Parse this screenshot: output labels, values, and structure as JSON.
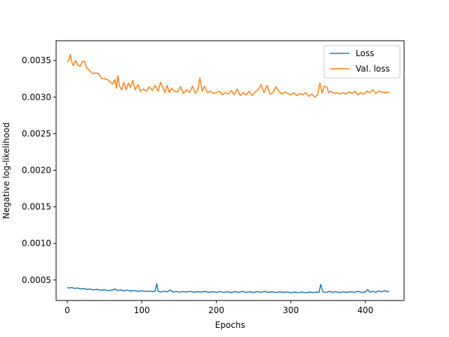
{
  "chart_data": {
    "type": "line",
    "title": "",
    "xlabel": "Epochs",
    "ylabel": "Negative log-likelihood",
    "xlim": [
      -15,
      452
    ],
    "ylim": [
      0.00022,
      0.00377
    ],
    "xticks": [
      0,
      100,
      200,
      300,
      400
    ],
    "xtick_labels": [
      "0",
      "100",
      "200",
      "300",
      "400"
    ],
    "yticks": [
      0.0005,
      0.001,
      0.0015,
      0.002,
      0.0025,
      0.003,
      0.0035
    ],
    "ytick_labels": [
      "0.0005",
      "0.0010",
      "0.0015",
      "0.0020",
      "0.0025",
      "0.0030",
      "0.0035"
    ],
    "grid": false,
    "legend_position": "top-right",
    "series": [
      {
        "name": "Loss",
        "color": "#1f77b4",
        "points": [
          [
            0,
            0.000395
          ],
          [
            3,
            0.00039
          ],
          [
            6,
            0.000398
          ],
          [
            10,
            0.000385
          ],
          [
            14,
            0.00039
          ],
          [
            18,
            0.000378
          ],
          [
            22,
            0.000383
          ],
          [
            26,
            0.000372
          ],
          [
            30,
            0.000376
          ],
          [
            35,
            0.000365
          ],
          [
            40,
            0.000372
          ],
          [
            45,
            0.00036
          ],
          [
            50,
            0.000366
          ],
          [
            55,
            0.000356
          ],
          [
            60,
            0.000362
          ],
          [
            64,
            0.000378
          ],
          [
            68,
            0.000356
          ],
          [
            72,
            0.000365
          ],
          [
            76,
            0.00035
          ],
          [
            80,
            0.000362
          ],
          [
            85,
            0.000348
          ],
          [
            90,
            0.000356
          ],
          [
            95,
            0.000345
          ],
          [
            100,
            0.000352
          ],
          [
            105,
            0.000343
          ],
          [
            110,
            0.00035
          ],
          [
            115,
            0.00034
          ],
          [
            118,
            0.000348
          ],
          [
            120,
            0.00045
          ],
          [
            122,
            0.000345
          ],
          [
            126,
            0.000336
          ],
          [
            130,
            0.000348
          ],
          [
            134,
            0.000338
          ],
          [
            138,
            0.000365
          ],
          [
            142,
            0.000335
          ],
          [
            146,
            0.000345
          ],
          [
            150,
            0.000333
          ],
          [
            155,
            0.000342
          ],
          [
            160,
            0.000336
          ],
          [
            165,
            0.000345
          ],
          [
            170,
            0.000332
          ],
          [
            175,
            0.000342
          ],
          [
            180,
            0.000335
          ],
          [
            185,
            0.000345
          ],
          [
            190,
            0.00033
          ],
          [
            195,
            0.00034
          ],
          [
            200,
            0.000333
          ],
          [
            205,
            0.000343
          ],
          [
            210,
            0.00033
          ],
          [
            215,
            0.00034
          ],
          [
            220,
            0.000328
          ],
          [
            225,
            0.000342
          ],
          [
            230,
            0.000331
          ],
          [
            235,
            0.000345
          ],
          [
            240,
            0.00033
          ],
          [
            245,
            0.00034
          ],
          [
            250,
            0.000328
          ],
          [
            255,
            0.000342
          ],
          [
            260,
            0.000332
          ],
          [
            265,
            0.000345
          ],
          [
            270,
            0.00033
          ],
          [
            275,
            0.00034
          ],
          [
            280,
            0.000328
          ],
          [
            285,
            0.000338
          ],
          [
            290,
            0.00033
          ],
          [
            295,
            0.000338
          ],
          [
            300,
            0.000326
          ],
          [
            305,
            0.000335
          ],
          [
            310,
            0.000328
          ],
          [
            315,
            0.000336
          ],
          [
            320,
            0.000325
          ],
          [
            325,
            0.000335
          ],
          [
            330,
            0.000328
          ],
          [
            335,
            0.000336
          ],
          [
            338,
            0.00033
          ],
          [
            340,
            0.00044
          ],
          [
            343,
            0.000338
          ],
          [
            347,
            0.00033
          ],
          [
            352,
            0.000345
          ],
          [
            356,
            0.00033
          ],
          [
            360,
            0.00034
          ],
          [
            365,
            0.000328
          ],
          [
            370,
            0.000338
          ],
          [
            375,
            0.00033
          ],
          [
            380,
            0.00034
          ],
          [
            385,
            0.000332
          ],
          [
            390,
            0.000345
          ],
          [
            395,
            0.00033
          ],
          [
            400,
            0.000338
          ],
          [
            403,
            0.00037
          ],
          [
            406,
            0.000335
          ],
          [
            410,
            0.000345
          ],
          [
            414,
            0.000332
          ],
          [
            418,
            0.00035
          ],
          [
            422,
            0.000338
          ],
          [
            426,
            0.000355
          ],
          [
            430,
            0.00034
          ],
          [
            432,
            0.000345
          ]
        ]
      },
      {
        "name": "Val. loss",
        "color": "#ff7f0e",
        "points": [
          [
            0,
            0.00348
          ],
          [
            2,
            0.0035
          ],
          [
            4,
            0.00358
          ],
          [
            6,
            0.00348
          ],
          [
            8,
            0.00343
          ],
          [
            11,
            0.0035
          ],
          [
            14,
            0.00344
          ],
          [
            17,
            0.00342
          ],
          [
            20,
            0.00348
          ],
          [
            23,
            0.00349
          ],
          [
            26,
            0.0034
          ],
          [
            30,
            0.00336
          ],
          [
            34,
            0.00332
          ],
          [
            38,
            0.00333
          ],
          [
            42,
            0.00332
          ],
          [
            46,
            0.00326
          ],
          [
            50,
            0.00325
          ],
          [
            54,
            0.00324
          ],
          [
            58,
            0.0032
          ],
          [
            61,
            0.00318
          ],
          [
            64,
            0.00324
          ],
          [
            66,
            0.00312
          ],
          [
            68,
            0.00329
          ],
          [
            70,
            0.00315
          ],
          [
            73,
            0.0031
          ],
          [
            76,
            0.0032
          ],
          [
            79,
            0.0031
          ],
          [
            82,
            0.00319
          ],
          [
            85,
            0.00313
          ],
          [
            88,
            0.00323
          ],
          [
            91,
            0.0031
          ],
          [
            95,
            0.00317
          ],
          [
            98,
            0.00308
          ],
          [
            102,
            0.00311
          ],
          [
            106,
            0.00308
          ],
          [
            110,
            0.00314
          ],
          [
            114,
            0.00309
          ],
          [
            118,
            0.00316
          ],
          [
            122,
            0.00308
          ],
          [
            125,
            0.0032
          ],
          [
            128,
            0.00314
          ],
          [
            131,
            0.00306
          ],
          [
            134,
            0.00316
          ],
          [
            137,
            0.00306
          ],
          [
            140,
            0.00312
          ],
          [
            144,
            0.00308
          ],
          [
            148,
            0.00307
          ],
          [
            152,
            0.00314
          ],
          [
            156,
            0.00305
          ],
          [
            160,
            0.0031
          ],
          [
            164,
            0.00306
          ],
          [
            168,
            0.00315
          ],
          [
            172,
            0.00305
          ],
          [
            175,
            0.0031
          ],
          [
            178,
            0.00326
          ],
          [
            181,
            0.00308
          ],
          [
            184,
            0.00315
          ],
          [
            188,
            0.00306
          ],
          [
            192,
            0.00308
          ],
          [
            196,
            0.00305
          ],
          [
            200,
            0.00306
          ],
          [
            204,
            0.00308
          ],
          [
            208,
            0.00303
          ],
          [
            212,
            0.00306
          ],
          [
            216,
            0.00304
          ],
          [
            220,
            0.00309
          ],
          [
            224,
            0.00303
          ],
          [
            228,
            0.00311
          ],
          [
            232,
            0.00302
          ],
          [
            236,
            0.00306
          ],
          [
            240,
            0.00303
          ],
          [
            244,
            0.00308
          ],
          [
            248,
            0.00302
          ],
          [
            252,
            0.00307
          ],
          [
            256,
            0.0031
          ],
          [
            260,
            0.00317
          ],
          [
            264,
            0.00306
          ],
          [
            268,
            0.00316
          ],
          [
            272,
            0.00304
          ],
          [
            276,
            0.00306
          ],
          [
            280,
            0.00314
          ],
          [
            284,
            0.00308
          ],
          [
            288,
            0.00304
          ],
          [
            292,
            0.00307
          ],
          [
            296,
            0.00305
          ],
          [
            300,
            0.00303
          ],
          [
            304,
            0.00306
          ],
          [
            308,
            0.00302
          ],
          [
            312,
            0.00305
          ],
          [
            316,
            0.00303
          ],
          [
            320,
            0.00306
          ],
          [
            324,
            0.00301
          ],
          [
            328,
            0.00304
          ],
          [
            332,
            0.003
          ],
          [
            336,
            0.00303
          ],
          [
            339,
            0.00319
          ],
          [
            342,
            0.00306
          ],
          [
            345,
            0.00315
          ],
          [
            348,
            0.00314
          ],
          [
            351,
            0.00306
          ],
          [
            354,
            0.00308
          ],
          [
            358,
            0.00305
          ],
          [
            362,
            0.00306
          ],
          [
            366,
            0.00304
          ],
          [
            370,
            0.00306
          ],
          [
            374,
            0.00304
          ],
          [
            378,
            0.00307
          ],
          [
            382,
            0.00305
          ],
          [
            386,
            0.00308
          ],
          [
            390,
            0.00303
          ],
          [
            394,
            0.00306
          ],
          [
            398,
            0.00304
          ],
          [
            402,
            0.00308
          ],
          [
            406,
            0.00306
          ],
          [
            410,
            0.0031
          ],
          [
            414,
            0.00305
          ],
          [
            418,
            0.00308
          ],
          [
            422,
            0.00307
          ],
          [
            426,
            0.00306
          ],
          [
            432,
            0.00307
          ]
        ]
      }
    ]
  }
}
